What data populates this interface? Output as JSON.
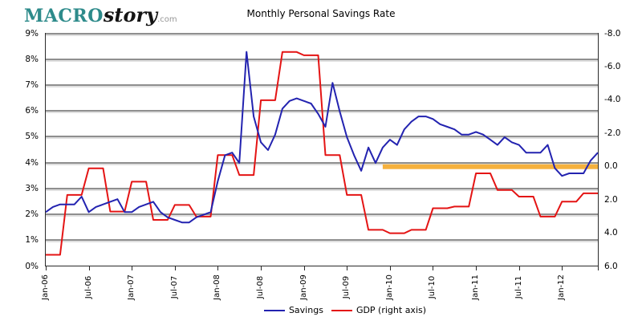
{
  "logo": {
    "macro": "MACRO",
    "story": "story",
    "com": ".com"
  },
  "title": "Monthly Personal Savings Rate",
  "legend": [
    {
      "label": "Savings",
      "series": 0
    },
    {
      "label": "GDP (right axis)",
      "series": 1
    }
  ],
  "chart_data": {
    "type": "line",
    "title": "Monthly Personal Savings Rate",
    "x_frequency": "monthly",
    "x_start": "Jan-06",
    "x_end": "Jun-12",
    "x_tick_labels": [
      "Jan-06",
      "Jul-06",
      "Jan-07",
      "Jul-07",
      "Jan-08",
      "Jul-08",
      "Jan-09",
      "Jul-09",
      "Jan-10",
      "Jul-10",
      "Jan-11",
      "Jul-11",
      "Jan-12"
    ],
    "left_axis": {
      "tick_labels": [
        "9%",
        "8%",
        "7%",
        "6%",
        "5%",
        "4%",
        "3%",
        "2%",
        "1%",
        "0%"
      ],
      "min": 0,
      "max": 9
    },
    "right_axis": {
      "tick_labels": [
        "-8.0",
        "-6.0",
        "-4.0",
        "-2.0",
        "0.0",
        "2.0",
        "4.0",
        "6.0"
      ],
      "min": -8,
      "max": 6,
      "inverted": true
    },
    "grid": true,
    "legend_position": "bottom-center",
    "series": [
      {
        "name": "Savings",
        "axis": "left",
        "color": "#2323B0",
        "frequency": "monthly",
        "values": [
          2.1,
          2.3,
          2.4,
          2.4,
          2.4,
          2.7,
          2.1,
          2.3,
          2.4,
          2.5,
          2.6,
          2.1,
          2.1,
          2.3,
          2.4,
          2.5,
          2.1,
          1.9,
          1.8,
          1.7,
          1.7,
          1.9,
          2.0,
          2.1,
          3.3,
          4.3,
          4.4,
          4.0,
          8.3,
          5.8,
          4.8,
          4.5,
          5.1,
          6.1,
          6.4,
          6.5,
          6.4,
          6.3,
          5.9,
          5.4,
          7.1,
          6.0,
          5.0,
          4.3,
          3.7,
          4.6,
          4.0,
          4.6,
          4.9,
          4.7,
          5.3,
          5.6,
          5.8,
          5.8,
          5.7,
          5.5,
          5.4,
          5.3,
          5.1,
          5.1,
          5.2,
          5.1,
          4.9,
          4.7,
          5.0,
          4.8,
          4.7,
          4.4,
          4.4,
          4.4,
          4.7,
          3.8,
          3.5,
          3.6,
          3.6,
          3.6,
          4.1,
          4.4
        ]
      },
      {
        "name": "GDP (right axis)",
        "axis": "right",
        "color": "#E41414",
        "frequency": "quarterly",
        "quarters": [
          "2006Q1",
          "2006Q2",
          "2006Q3",
          "2006Q4",
          "2007Q1",
          "2007Q2",
          "2007Q3",
          "2007Q4",
          "2008Q1",
          "2008Q2",
          "2008Q3",
          "2008Q4",
          "2009Q1",
          "2009Q2",
          "2009Q3",
          "2009Q4",
          "2010Q1",
          "2010Q2",
          "2010Q3",
          "2010Q4",
          "2011Q1",
          "2011Q2",
          "2011Q3",
          "2011Q4",
          "2012Q1",
          "2012Q2"
        ],
        "values": [
          5.3,
          1.7,
          0.1,
          2.7,
          0.9,
          3.2,
          2.3,
          3.0,
          -0.7,
          0.5,
          -4.0,
          -6.9,
          -6.7,
          -0.7,
          1.7,
          3.8,
          4.0,
          3.8,
          2.5,
          2.4,
          0.4,
          1.4,
          1.8,
          3.0,
          2.1,
          1.6
        ]
      }
    ],
    "annotations": [
      {
        "type": "horizontal-bar",
        "description": "zero GDP reference bar",
        "color": "#F5B13D",
        "right_axis_value": 0.0,
        "x_start": "Dec-09",
        "x_end": "Jun-12"
      }
    ]
  }
}
